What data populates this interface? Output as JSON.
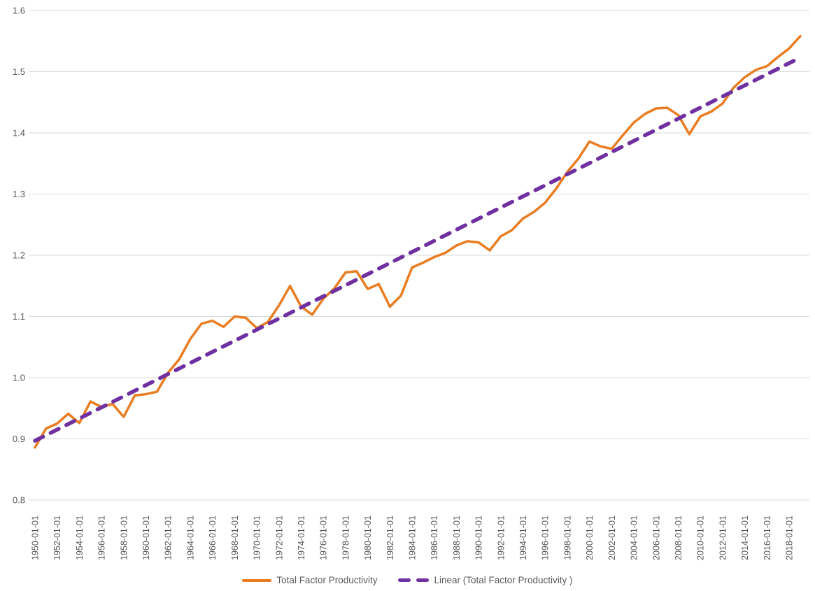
{
  "chart_data": {
    "type": "line",
    "title": "",
    "xlabel": "",
    "ylabel": "",
    "ylim": [
      0.8,
      1.6
    ],
    "grid": true,
    "legend_position": "bottom-center",
    "background_color": "#FFFFFF",
    "gridline_color": "#D9D9D9",
    "tick_label_color": "#595959",
    "y_tick_labels": [
      "0.8",
      "0.9",
      "1.0",
      "1.1",
      "1.2",
      "1.3",
      "1.4",
      "1.5",
      "1.6"
    ],
    "y_ticks": [
      0.8,
      0.9,
      1.0,
      1.1,
      1.2,
      1.3,
      1.4,
      1.5,
      1.6
    ],
    "categories": [
      "1950-01-01",
      "1952-01-01",
      "1954-01-01",
      "1956-01-01",
      "1958-01-01",
      "1960-01-01",
      "1962-01-01",
      "1964-01-01",
      "1966-01-01",
      "1968-01-01",
      "1970-01-01",
      "1972-01-01",
      "1974-01-01",
      "1976-01-01",
      "1978-01-01",
      "1980-01-01",
      "1982-01-01",
      "1984-01-01",
      "1986-01-01",
      "1988-01-01",
      "1990-01-01",
      "1992-01-01",
      "1994-01-01",
      "1996-01-01",
      "1998-01-01",
      "2000-01-01",
      "2002-01-01",
      "2004-01-01",
      "2006-01-01",
      "2008-01-01",
      "2010-01-01",
      "2012-01-01",
      "2014-01-01",
      "2016-01-01",
      "2018-01-01"
    ],
    "years": [
      1950,
      1951,
      1952,
      1953,
      1954,
      1955,
      1956,
      1957,
      1958,
      1959,
      1960,
      1961,
      1962,
      1963,
      1964,
      1965,
      1966,
      1967,
      1968,
      1969,
      1970,
      1971,
      1972,
      1973,
      1974,
      1975,
      1976,
      1977,
      1978,
      1979,
      1980,
      1981,
      1982,
      1983,
      1984,
      1985,
      1986,
      1987,
      1988,
      1989,
      1990,
      1991,
      1992,
      1993,
      1994,
      1995,
      1996,
      1997,
      1998,
      1999,
      2000,
      2001,
      2002,
      2003,
      2004,
      2005,
      2006,
      2007,
      2008,
      2009,
      2010,
      2011,
      2012,
      2013,
      2014,
      2015,
      2016,
      2017,
      2018,
      2019
    ],
    "series": [
      {
        "name": "Total Factor Productivity",
        "color": "#E87D22",
        "line_style": "solid",
        "values": [
          0.886,
          0.917,
          0.925,
          0.941,
          0.926,
          0.961,
          0.952,
          0.957,
          0.936,
          0.971,
          0.973,
          0.977,
          1.008,
          1.03,
          1.063,
          1.088,
          1.093,
          1.083,
          1.1,
          1.098,
          1.081,
          1.091,
          1.118,
          1.15,
          1.116,
          1.103,
          1.129,
          1.146,
          1.172,
          1.174,
          1.145,
          1.153,
          1.116,
          1.134,
          1.18,
          1.188,
          1.197,
          1.204,
          1.216,
          1.223,
          1.221,
          1.208,
          1.231,
          1.241,
          1.26,
          1.271,
          1.286,
          1.309,
          1.336,
          1.358,
          1.386,
          1.378,
          1.374,
          1.396,
          1.417,
          1.431,
          1.44,
          1.441,
          1.429,
          1.398,
          1.427,
          1.435,
          1.448,
          1.474,
          1.491,
          1.503,
          1.509,
          1.524,
          1.538,
          1.558
        ]
      },
      {
        "name": "Linear (Total Factor Productivity )",
        "color": "#7030A0",
        "line_style": "dashed",
        "trend_start_value": 0.897,
        "trend_end_value": 1.523
      }
    ]
  }
}
